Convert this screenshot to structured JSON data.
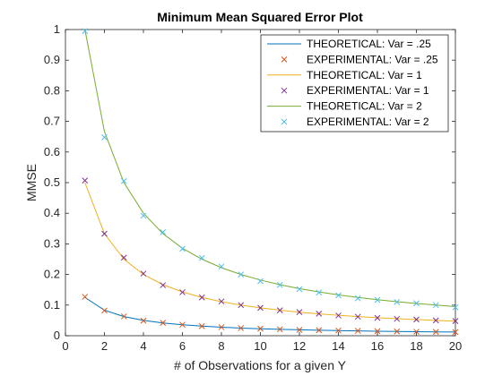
{
  "chart_data": {
    "type": "line",
    "title": "Minimum Mean Squared Error Plot",
    "xlabel": "# of Observations for a given Y",
    "ylabel": "MMSE",
    "xlim": [
      0,
      20
    ],
    "ylim": [
      0,
      1
    ],
    "xticks": [
      0,
      2,
      4,
      6,
      8,
      10,
      12,
      14,
      16,
      18,
      20
    ],
    "yticks": [
      0,
      0.1,
      0.2,
      0.3,
      0.4,
      0.5,
      0.6,
      0.7,
      0.8,
      0.9,
      1
    ],
    "xtick_labels": [
      "0",
      "2",
      "4",
      "6",
      "8",
      "10",
      "12",
      "14",
      "16",
      "18",
      "20"
    ],
    "ytick_labels": [
      "0",
      "0.1",
      "0.2",
      "0.3",
      "0.4",
      "0.5",
      "0.6",
      "0.7",
      "0.8",
      "0.9",
      "1"
    ],
    "legend_position": "top-right",
    "grid": false,
    "x": [
      1,
      2,
      3,
      4,
      5,
      6,
      7,
      8,
      9,
      10,
      11,
      12,
      13,
      14,
      15,
      16,
      17,
      18,
      19,
      20
    ],
    "series": [
      {
        "name": "THEORETICAL: Var = .25",
        "kind": "line",
        "color": "#0072BD",
        "values": [
          0.125,
          0.0833,
          0.0625,
          0.05,
          0.0417,
          0.0357,
          0.0313,
          0.0278,
          0.025,
          0.0227,
          0.0208,
          0.0192,
          0.0179,
          0.0167,
          0.0156,
          0.0147,
          0.0139,
          0.0132,
          0.0125,
          0.0119
        ]
      },
      {
        "name": "EXPERIMENTAL: Var = .25",
        "kind": "marker",
        "color": "#D95319",
        "values": [
          0.127,
          0.082,
          0.063,
          0.049,
          0.042,
          0.036,
          0.031,
          0.028,
          0.025,
          0.023,
          0.021,
          0.019,
          0.018,
          0.017,
          0.016,
          0.015,
          0.014,
          0.013,
          0.0125,
          0.012
        ]
      },
      {
        "name": "THEORETICAL: Var = 1",
        "kind": "line",
        "color": "#EDB120",
        "values": [
          0.5,
          0.3333,
          0.25,
          0.2,
          0.1667,
          0.1429,
          0.125,
          0.1111,
          0.1,
          0.0909,
          0.0833,
          0.0769,
          0.0714,
          0.0667,
          0.0625,
          0.0588,
          0.0556,
          0.0526,
          0.05,
          0.0476
        ]
      },
      {
        "name": "EXPERIMENTAL: Var = 1",
        "kind": "marker",
        "color": "#7E2F8E",
        "values": [
          0.507,
          0.333,
          0.255,
          0.203,
          0.165,
          0.142,
          0.125,
          0.112,
          0.1,
          0.091,
          0.083,
          0.077,
          0.072,
          0.066,
          0.062,
          0.058,
          0.055,
          0.053,
          0.05,
          0.048
        ]
      },
      {
        "name": "THEORETICAL: Var = 2",
        "kind": "line",
        "color": "#77AC30",
        "values": [
          1.0,
          0.6667,
          0.5,
          0.4,
          0.3333,
          0.2857,
          0.25,
          0.2222,
          0.2,
          0.1818,
          0.1667,
          0.1538,
          0.1429,
          0.1333,
          0.125,
          0.1176,
          0.1111,
          0.1053,
          0.1,
          0.0952
        ]
      },
      {
        "name": "EXPERIMENTAL: Var = 2",
        "kind": "marker",
        "color": "#4DBEEE",
        "values": [
          0.995,
          0.648,
          0.505,
          0.392,
          0.338,
          0.284,
          0.254,
          0.226,
          0.2,
          0.178,
          0.166,
          0.152,
          0.141,
          0.132,
          0.122,
          0.117,
          0.11,
          0.106,
          0.1,
          0.093
        ]
      }
    ]
  }
}
